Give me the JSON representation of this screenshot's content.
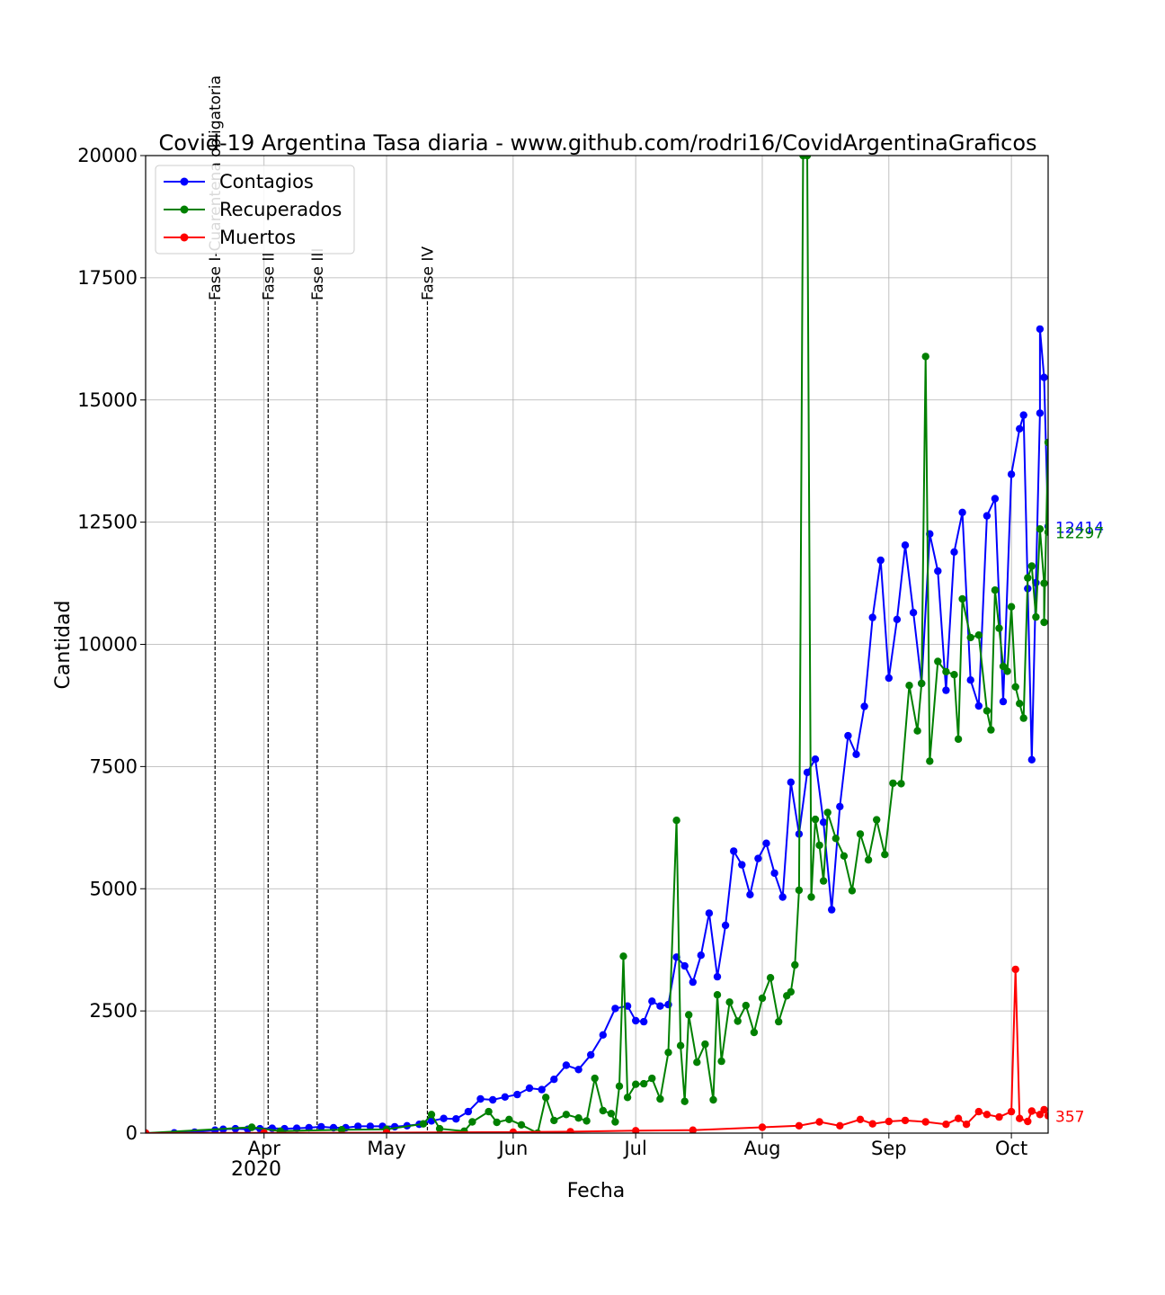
{
  "chart_data": {
    "type": "line",
    "title": "Covid-19 Argentina Tasa diaria - www.github.com/rodri16/CovidArgentinaGraficos",
    "xlabel": "Fecha",
    "ylabel": "Cantidad",
    "x_range": [
      "2020-03-03",
      "2020-10-10"
    ],
    "ylim": [
      0,
      20000
    ],
    "grid": true,
    "legend_placement": "top-left",
    "x_ticks": [
      {
        "date": "2020-04-01",
        "label": "Apr"
      },
      {
        "date": "2020-05-01",
        "label": "May"
      },
      {
        "date": "2020-06-01",
        "label": "Jun"
      },
      {
        "date": "2020-07-01",
        "label": "Jul"
      },
      {
        "date": "2020-08-01",
        "label": "Aug"
      },
      {
        "date": "2020-09-01",
        "label": "Sep"
      },
      {
        "date": "2020-10-01",
        "label": "Oct"
      }
    ],
    "x_year_label": "2020",
    "y_ticks": [
      0,
      2500,
      5000,
      7500,
      10000,
      12500,
      15000,
      17500,
      20000
    ],
    "phases": [
      {
        "date": "2020-03-20",
        "label": "Fase I-Cuarentena obligatoria"
      },
      {
        "date": "2020-04-02",
        "label": "Fase II"
      },
      {
        "date": "2020-04-14",
        "label": "Fase III"
      },
      {
        "date": "2020-05-11",
        "label": "Fase IV"
      }
    ],
    "series": [
      {
        "name": "Contagios",
        "color": "#0000ff",
        "last_label": "12414",
        "points": [
          [
            "2020-03-03",
            0
          ],
          [
            "2020-03-10",
            5
          ],
          [
            "2020-03-15",
            20
          ],
          [
            "2020-03-20",
            60
          ],
          [
            "2020-03-22",
            80
          ],
          [
            "2020-03-25",
            90
          ],
          [
            "2020-03-28",
            80
          ],
          [
            "2020-03-31",
            90
          ],
          [
            "2020-04-03",
            100
          ],
          [
            "2020-04-06",
            90
          ],
          [
            "2020-04-09",
            100
          ],
          [
            "2020-04-12",
            110
          ],
          [
            "2020-04-15",
            130
          ],
          [
            "2020-04-18",
            110
          ],
          [
            "2020-04-21",
            110
          ],
          [
            "2020-04-24",
            140
          ],
          [
            "2020-04-27",
            140
          ],
          [
            "2020-04-30",
            140
          ],
          [
            "2020-05-03",
            130
          ],
          [
            "2020-05-06",
            150
          ],
          [
            "2020-05-09",
            180
          ],
          [
            "2020-05-12",
            250
          ],
          [
            "2020-05-15",
            300
          ],
          [
            "2020-05-18",
            290
          ],
          [
            "2020-05-21",
            440
          ],
          [
            "2020-05-24",
            700
          ],
          [
            "2020-05-27",
            680
          ],
          [
            "2020-05-30",
            740
          ],
          [
            "2020-06-02",
            790
          ],
          [
            "2020-06-05",
            920
          ],
          [
            "2020-06-08",
            890
          ],
          [
            "2020-06-11",
            1100
          ],
          [
            "2020-06-14",
            1390
          ],
          [
            "2020-06-17",
            1300
          ],
          [
            "2020-06-20",
            1600
          ],
          [
            "2020-06-23",
            2010
          ],
          [
            "2020-06-26",
            2550
          ],
          [
            "2020-06-29",
            2600
          ],
          [
            "2020-07-01",
            2300
          ],
          [
            "2020-07-03",
            2280
          ],
          [
            "2020-07-05",
            2700
          ],
          [
            "2020-07-07",
            2600
          ],
          [
            "2020-07-09",
            2630
          ],
          [
            "2020-07-11",
            3600
          ],
          [
            "2020-07-13",
            3420
          ],
          [
            "2020-07-15",
            3090
          ],
          [
            "2020-07-17",
            3640
          ],
          [
            "2020-07-19",
            4500
          ],
          [
            "2020-07-21",
            3200
          ],
          [
            "2020-07-23",
            4250
          ],
          [
            "2020-07-25",
            5770
          ],
          [
            "2020-07-27",
            5490
          ],
          [
            "2020-07-29",
            4880
          ],
          [
            "2020-07-31",
            5620
          ],
          [
            "2020-08-02",
            5930
          ],
          [
            "2020-08-04",
            5320
          ],
          [
            "2020-08-06",
            4830
          ],
          [
            "2020-08-08",
            7180
          ],
          [
            "2020-08-10",
            6120
          ],
          [
            "2020-08-12",
            7380
          ],
          [
            "2020-08-14",
            7650
          ],
          [
            "2020-08-16",
            6360
          ],
          [
            "2020-08-18",
            4570
          ],
          [
            "2020-08-20",
            6680
          ],
          [
            "2020-08-22",
            8130
          ],
          [
            "2020-08-24",
            7750
          ],
          [
            "2020-08-26",
            8730
          ],
          [
            "2020-08-28",
            10550
          ],
          [
            "2020-08-30",
            11720
          ],
          [
            "2020-09-01",
            9310
          ],
          [
            "2020-09-03",
            10510
          ],
          [
            "2020-09-05",
            12030
          ],
          [
            "2020-09-07",
            10650
          ],
          [
            "2020-09-09",
            9200
          ],
          [
            "2020-09-11",
            12260
          ],
          [
            "2020-09-13",
            11500
          ],
          [
            "2020-09-15",
            9060
          ],
          [
            "2020-09-17",
            11890
          ],
          [
            "2020-09-19",
            12700
          ],
          [
            "2020-09-21",
            9270
          ],
          [
            "2020-09-23",
            8740
          ],
          [
            "2020-09-25",
            12630
          ],
          [
            "2020-09-27",
            12980
          ],
          [
            "2020-09-29",
            8830
          ],
          [
            "2020-10-01",
            13480
          ],
          [
            "2020-10-03",
            14410
          ],
          [
            "2020-10-04",
            14690
          ],
          [
            "2020-10-05",
            11140
          ],
          [
            "2020-10-06",
            7640
          ],
          [
            "2020-10-07",
            11260
          ],
          [
            "2020-10-08",
            14730
          ],
          [
            "2020-10-08",
            16450
          ],
          [
            "2020-10-09",
            15460
          ],
          [
            "2020-10-10",
            12414
          ]
        ]
      },
      {
        "name": "Recuperados",
        "color": "#008000",
        "last_label": "12297",
        "points": [
          [
            "2020-03-03",
            0
          ],
          [
            "2020-03-29",
            120
          ],
          [
            "2020-04-05",
            40
          ],
          [
            "2020-04-20",
            70
          ],
          [
            "2020-05-01",
            80
          ],
          [
            "2020-05-10",
            190
          ],
          [
            "2020-05-12",
            380
          ],
          [
            "2020-05-14",
            90
          ],
          [
            "2020-05-20",
            40
          ],
          [
            "2020-05-22",
            230
          ],
          [
            "2020-05-26",
            440
          ],
          [
            "2020-05-28",
            220
          ],
          [
            "2020-05-31",
            280
          ],
          [
            "2020-06-03",
            170
          ],
          [
            "2020-06-07",
            0
          ],
          [
            "2020-06-09",
            730
          ],
          [
            "2020-06-11",
            260
          ],
          [
            "2020-06-14",
            380
          ],
          [
            "2020-06-17",
            310
          ],
          [
            "2020-06-19",
            250
          ],
          [
            "2020-06-21",
            1120
          ],
          [
            "2020-06-23",
            460
          ],
          [
            "2020-06-25",
            400
          ],
          [
            "2020-06-26",
            230
          ],
          [
            "2020-06-27",
            960
          ],
          [
            "2020-06-28",
            3620
          ],
          [
            "2020-06-29",
            730
          ],
          [
            "2020-07-01",
            1000
          ],
          [
            "2020-07-03",
            1010
          ],
          [
            "2020-07-05",
            1120
          ],
          [
            "2020-07-07",
            700
          ],
          [
            "2020-07-09",
            1650
          ],
          [
            "2020-07-11",
            6400
          ],
          [
            "2020-07-12",
            1790
          ],
          [
            "2020-07-13",
            650
          ],
          [
            "2020-07-14",
            2420
          ],
          [
            "2020-07-16",
            1450
          ],
          [
            "2020-07-18",
            1820
          ],
          [
            "2020-07-20",
            680
          ],
          [
            "2020-07-21",
            2830
          ],
          [
            "2020-07-22",
            1470
          ],
          [
            "2020-07-24",
            2680
          ],
          [
            "2020-07-26",
            2290
          ],
          [
            "2020-07-28",
            2610
          ],
          [
            "2020-07-30",
            2060
          ],
          [
            "2020-08-01",
            2760
          ],
          [
            "2020-08-03",
            3180
          ],
          [
            "2020-08-05",
            2280
          ],
          [
            "2020-08-07",
            2810
          ],
          [
            "2020-08-08",
            2890
          ],
          [
            "2020-08-09",
            3440
          ],
          [
            "2020-08-10",
            4970
          ],
          [
            "2020-08-11",
            20000
          ],
          [
            "2020-08-12",
            20000
          ],
          [
            "2020-08-13",
            4830
          ],
          [
            "2020-08-14",
            6420
          ],
          [
            "2020-08-15",
            5890
          ],
          [
            "2020-08-16",
            5160
          ],
          [
            "2020-08-17",
            6560
          ],
          [
            "2020-08-19",
            6030
          ],
          [
            "2020-08-21",
            5670
          ],
          [
            "2020-08-23",
            4960
          ],
          [
            "2020-08-25",
            6120
          ],
          [
            "2020-08-27",
            5590
          ],
          [
            "2020-08-29",
            6410
          ],
          [
            "2020-08-31",
            5700
          ],
          [
            "2020-09-02",
            7160
          ],
          [
            "2020-09-04",
            7150
          ],
          [
            "2020-09-06",
            9160
          ],
          [
            "2020-09-08",
            8230
          ],
          [
            "2020-09-09",
            9200
          ],
          [
            "2020-09-10",
            15890
          ],
          [
            "2020-09-11",
            7610
          ],
          [
            "2020-09-13",
            9650
          ],
          [
            "2020-09-15",
            9440
          ],
          [
            "2020-09-17",
            9380
          ],
          [
            "2020-09-18",
            8060
          ],
          [
            "2020-09-19",
            10930
          ],
          [
            "2020-09-21",
            10140
          ],
          [
            "2020-09-23",
            10190
          ],
          [
            "2020-09-25",
            8640
          ],
          [
            "2020-09-26",
            8250
          ],
          [
            "2020-09-27",
            11110
          ],
          [
            "2020-09-28",
            10330
          ],
          [
            "2020-09-29",
            9550
          ],
          [
            "2020-09-30",
            9450
          ],
          [
            "2020-10-01",
            10770
          ],
          [
            "2020-10-02",
            9130
          ],
          [
            "2020-10-03",
            8790
          ],
          [
            "2020-10-04",
            8490
          ],
          [
            "2020-10-05",
            11360
          ],
          [
            "2020-10-06",
            11600
          ],
          [
            "2020-10-07",
            10560
          ],
          [
            "2020-10-08",
            12360
          ],
          [
            "2020-10-09",
            11250
          ],
          [
            "2020-10-09",
            10450
          ],
          [
            "2020-10-10",
            14130
          ],
          [
            "2020-10-10",
            12297
          ]
        ]
      },
      {
        "name": "Muertos",
        "color": "#ff0000",
        "last_label": "357",
        "points": [
          [
            "2020-03-03",
            0
          ],
          [
            "2020-04-01",
            5
          ],
          [
            "2020-05-01",
            10
          ],
          [
            "2020-06-01",
            20
          ],
          [
            "2020-06-15",
            30
          ],
          [
            "2020-07-01",
            50
          ],
          [
            "2020-07-15",
            60
          ],
          [
            "2020-08-01",
            120
          ],
          [
            "2020-08-10",
            150
          ],
          [
            "2020-08-15",
            230
          ],
          [
            "2020-08-20",
            150
          ],
          [
            "2020-08-25",
            280
          ],
          [
            "2020-08-28",
            190
          ],
          [
            "2020-09-01",
            240
          ],
          [
            "2020-09-05",
            260
          ],
          [
            "2020-09-10",
            230
          ],
          [
            "2020-09-15",
            180
          ],
          [
            "2020-09-18",
            300
          ],
          [
            "2020-09-20",
            180
          ],
          [
            "2020-09-23",
            440
          ],
          [
            "2020-09-25",
            380
          ],
          [
            "2020-09-28",
            330
          ],
          [
            "2020-10-01",
            440
          ],
          [
            "2020-10-02",
            3350
          ],
          [
            "2020-10-03",
            300
          ],
          [
            "2020-10-05",
            240
          ],
          [
            "2020-10-06",
            450
          ],
          [
            "2020-10-08",
            380
          ],
          [
            "2020-10-09",
            480
          ],
          [
            "2020-10-10",
            357
          ]
        ]
      }
    ]
  }
}
